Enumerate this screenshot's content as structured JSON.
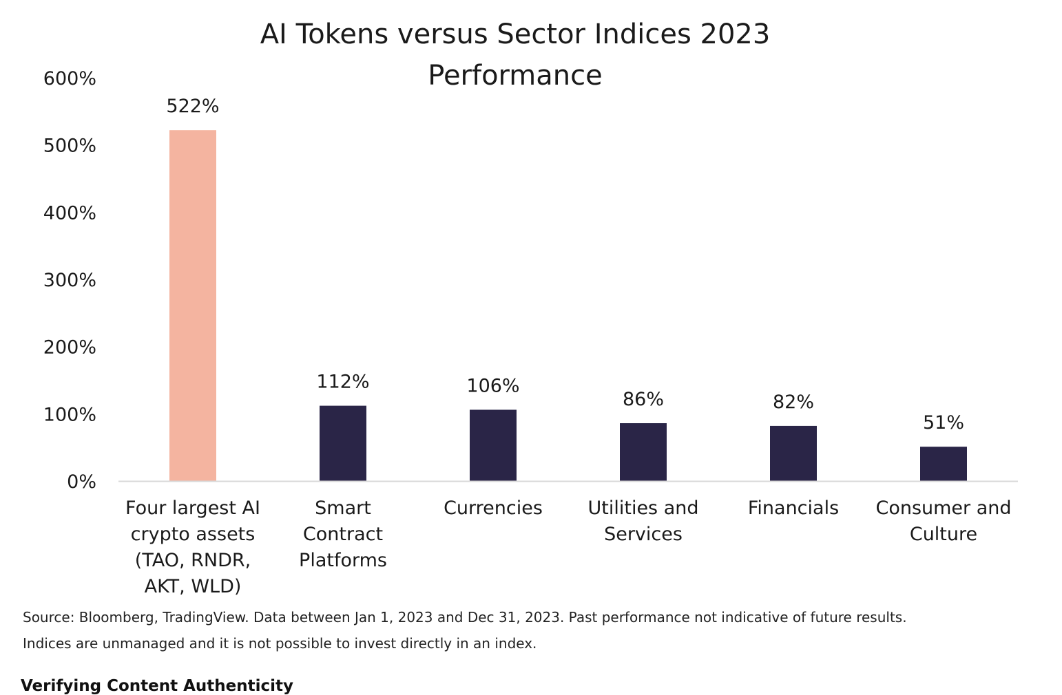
{
  "chart_data": {
    "type": "bar",
    "title_lines": [
      "AI Tokens versus Sector Indices 2023",
      "Performance"
    ],
    "categories": [
      [
        "Four largest AI",
        "crypto assets",
        "(TAO, RNDR,",
        "AKT, WLD)"
      ],
      [
        "Smart",
        "Contract",
        "Platforms"
      ],
      [
        "Currencies"
      ],
      [
        "Utilities and",
        "Services"
      ],
      [
        "Financials"
      ],
      [
        "Consumer and",
        "Culture"
      ]
    ],
    "values": [
      522,
      112,
      106,
      86,
      82,
      51
    ],
    "value_labels": [
      "522%",
      "112%",
      "106%",
      "86%",
      "82%",
      "51%"
    ],
    "ylim": [
      0,
      600
    ],
    "yticks": [
      0,
      100,
      200,
      300,
      400,
      500,
      600
    ],
    "ytick_labels": [
      "0%",
      "100%",
      "200%",
      "300%",
      "400%",
      "500%",
      "600%"
    ],
    "grid": false,
    "legend": "none",
    "colors": {
      "highlight": "#F4B4A0",
      "default": "#2A2547",
      "axis": "#D9D9D9"
    },
    "highlight_index": 0
  },
  "source_lines": [
    "Source: Bloomberg, TradingView. Data between Jan 1, 2023 and Dec 31, 2023. Past performance not indicative of future results.",
    "Indices are unmanaged and it is not possible to invest directly in an index."
  ],
  "footer_heading": "Verifying Content Authenticity"
}
